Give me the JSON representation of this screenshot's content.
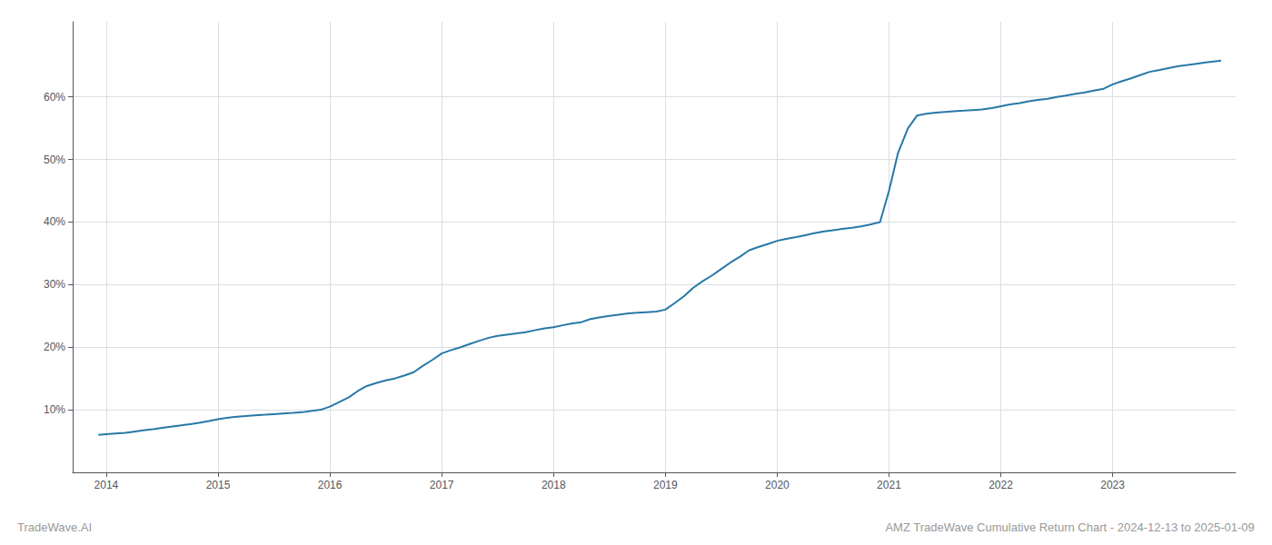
{
  "chart_data": {
    "type": "line",
    "title": "AMZ TradeWave Cumulative Return Chart - 2024-12-13 to 2025-01-09",
    "annotations": [
      "TradeWave.AI"
    ],
    "color": "#2878a8",
    "grid": true,
    "x": [
      2013.93,
      2014.0,
      2014.08,
      2014.17,
      2014.25,
      2014.33,
      2014.42,
      2014.5,
      2014.58,
      2014.67,
      2014.75,
      2014.83,
      2014.92,
      2015.0,
      2015.08,
      2015.17,
      2015.25,
      2015.33,
      2015.42,
      2015.5,
      2015.58,
      2015.67,
      2015.75,
      2015.83,
      2015.92,
      2016.0,
      2016.08,
      2016.17,
      2016.25,
      2016.33,
      2016.42,
      2016.5,
      2016.58,
      2016.67,
      2016.75,
      2016.83,
      2016.92,
      2017.0,
      2017.08,
      2017.17,
      2017.25,
      2017.33,
      2017.42,
      2017.5,
      2017.58,
      2017.67,
      2017.75,
      2017.83,
      2017.92,
      2018.0,
      2018.08,
      2018.17,
      2018.25,
      2018.33,
      2018.42,
      2018.5,
      2018.58,
      2018.67,
      2018.75,
      2018.83,
      2018.92,
      2019.0,
      2019.08,
      2019.17,
      2019.25,
      2019.33,
      2019.42,
      2019.5,
      2019.58,
      2019.67,
      2019.75,
      2019.83,
      2019.92,
      2020.0,
      2020.08,
      2020.17,
      2020.25,
      2020.33,
      2020.42,
      2020.5,
      2020.58,
      2020.67,
      2020.75,
      2020.83,
      2020.92,
      2021.0,
      2021.08,
      2021.17,
      2021.25,
      2021.33,
      2021.42,
      2021.5,
      2021.58,
      2021.67,
      2021.75,
      2021.83,
      2021.92,
      2022.0,
      2022.08,
      2022.17,
      2022.25,
      2022.33,
      2022.42,
      2022.5,
      2022.58,
      2022.67,
      2022.75,
      2022.83,
      2022.92,
      2023.0,
      2023.08,
      2023.17,
      2023.25,
      2023.33,
      2023.42,
      2023.5,
      2023.58,
      2023.67,
      2023.75,
      2023.83,
      2023.92,
      2023.97
    ],
    "values": [
      6.0,
      6.1,
      6.2,
      6.3,
      6.5,
      6.7,
      6.9,
      7.1,
      7.3,
      7.5,
      7.7,
      7.9,
      8.2,
      8.5,
      8.7,
      8.9,
      9.0,
      9.1,
      9.2,
      9.3,
      9.4,
      9.5,
      9.6,
      9.8,
      10.0,
      10.5,
      11.2,
      12.0,
      13.0,
      13.8,
      14.3,
      14.7,
      15.0,
      15.5,
      16.0,
      17.0,
      18.0,
      19.0,
      19.5,
      20.0,
      20.5,
      21.0,
      21.5,
      21.8,
      22.0,
      22.2,
      22.4,
      22.7,
      23.0,
      23.2,
      23.5,
      23.8,
      24.0,
      24.5,
      24.8,
      25.0,
      25.2,
      25.4,
      25.5,
      25.6,
      25.7,
      26.0,
      27.0,
      28.2,
      29.5,
      30.5,
      31.5,
      32.5,
      33.5,
      34.5,
      35.5,
      36.0,
      36.5,
      37.0,
      37.3,
      37.6,
      37.9,
      38.2,
      38.5,
      38.7,
      38.9,
      39.1,
      39.3,
      39.6,
      40.0,
      45.0,
      51.0,
      55.0,
      57.0,
      57.3,
      57.5,
      57.6,
      57.7,
      57.8,
      57.9,
      58.0,
      58.2,
      58.5,
      58.8,
      59.0,
      59.3,
      59.5,
      59.7,
      60.0,
      60.2,
      60.5,
      60.7,
      61.0,
      61.3,
      62.0,
      62.5,
      63.0,
      63.5,
      64.0,
      64.3,
      64.6,
      64.9,
      65.1,
      65.3,
      65.5,
      65.7,
      65.8
    ],
    "xlim": [
      2013.7,
      2024.1
    ],
    "xticks": [
      2014,
      2015,
      2016,
      2017,
      2018,
      2019,
      2020,
      2021,
      2022,
      2023
    ],
    "ylim": [
      0,
      72
    ],
    "yticks": [
      {
        "value": 10,
        "label": "10%"
      },
      {
        "value": 20,
        "label": "20%"
      },
      {
        "value": 30,
        "label": "30%"
      },
      {
        "value": 40,
        "label": "40%"
      },
      {
        "value": 50,
        "label": "50%"
      },
      {
        "value": 60,
        "label": "60%"
      }
    ]
  }
}
